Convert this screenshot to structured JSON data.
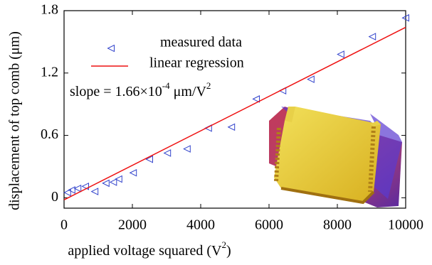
{
  "chart_data": {
    "type": "scatter",
    "x_label": [
      "applied voltage squared (V",
      "2",
      ")"
    ],
    "y_label": "displacement of top comb (μm)",
    "annotation": [
      "slope = 1.66×10",
      "-4",
      " μm/V",
      "2"
    ],
    "xlim": [
      0,
      10000
    ],
    "xticks": [
      0,
      2000,
      4000,
      6000,
      8000,
      10000
    ],
    "ylim": [
      -0.1,
      1.8
    ],
    "yticks": [
      0,
      0.6,
      1.2,
      1.8
    ],
    "series": [
      {
        "name": "measured data",
        "color": "#3344cc",
        "type": "scatter",
        "x": [
          100,
          225,
          400,
          625,
          900,
          1225,
          1444,
          1600,
          2025,
          2500,
          3025,
          3600,
          4225,
          4900,
          5625,
          6400,
          7225,
          8100,
          9025,
          10000
        ],
        "values": [
          0.05,
          0.075,
          0.09,
          0.11,
          0.06,
          0.14,
          0.15,
          0.18,
          0.24,
          0.37,
          0.43,
          0.47,
          0.67,
          0.68,
          0.95,
          1.03,
          1.14,
          1.38,
          1.55,
          1.73
        ]
      },
      {
        "name": "linear regression",
        "color": "#ee1111",
        "type": "line",
        "x": [
          0,
          10000
        ],
        "values": [
          -0.02,
          1.64
        ]
      }
    ]
  }
}
